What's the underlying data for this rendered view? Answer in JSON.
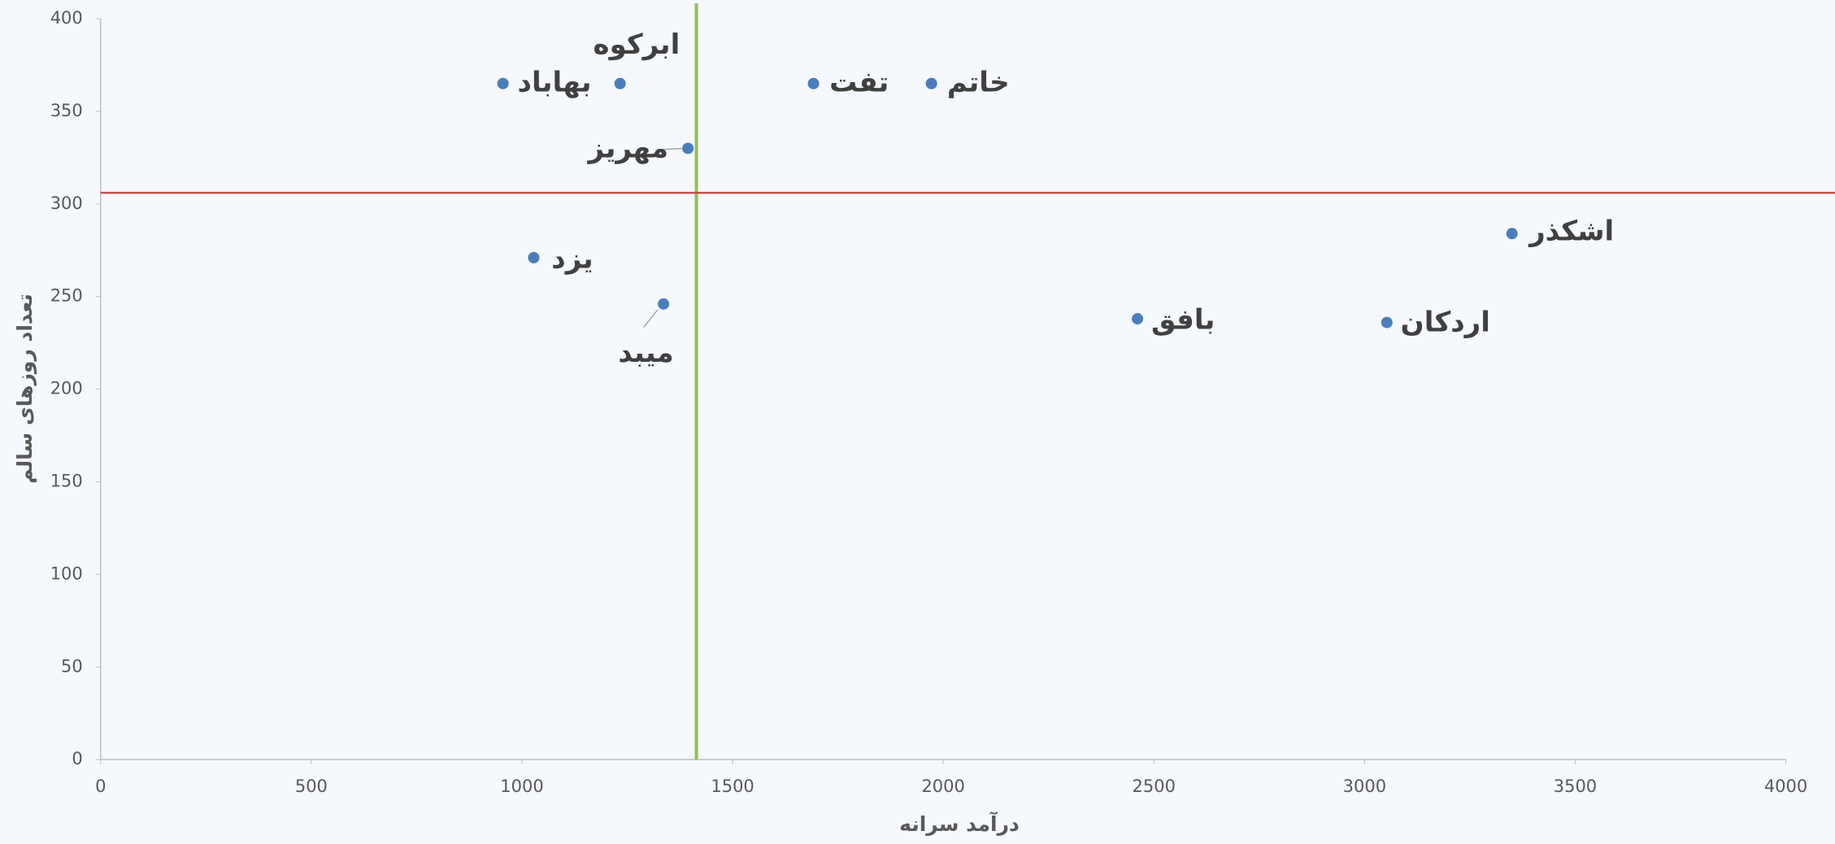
{
  "chart_data": {
    "type": "scatter",
    "x_label": "درآمد سرانه",
    "y_label": "تعداد روزهای سالم",
    "series": [
      {
        "color": "#4a7ebb",
        "x": [
          955,
          1233,
          1692,
          1972,
          1394,
          1028,
          1336,
          2461,
          3053,
          3350
        ],
        "values": [
          365,
          365,
          365,
          365,
          330,
          271,
          246,
          238,
          236,
          284
        ],
        "labels": [
          "بهاباد",
          "ابرکوه",
          "تفت",
          "خاتم",
          "مهریز",
          "یزد",
          "میبد",
          "بافق",
          "اردکان",
          "اشکذر"
        ]
      }
    ],
    "x_reference": {
      "value": 1414,
      "color": "#92c050"
    },
    "y_reference": {
      "value": 306,
      "color": "#c0504d"
    },
    "xlim": [
      0,
      4000
    ],
    "xticks": [
      0,
      500,
      1000,
      1500,
      2000,
      2500,
      3000,
      3500,
      4000
    ],
    "ylim": [
      0,
      400
    ],
    "yticks": [
      0,
      50,
      100,
      150,
      200,
      250,
      300,
      350,
      400
    ],
    "grid": false
  }
}
